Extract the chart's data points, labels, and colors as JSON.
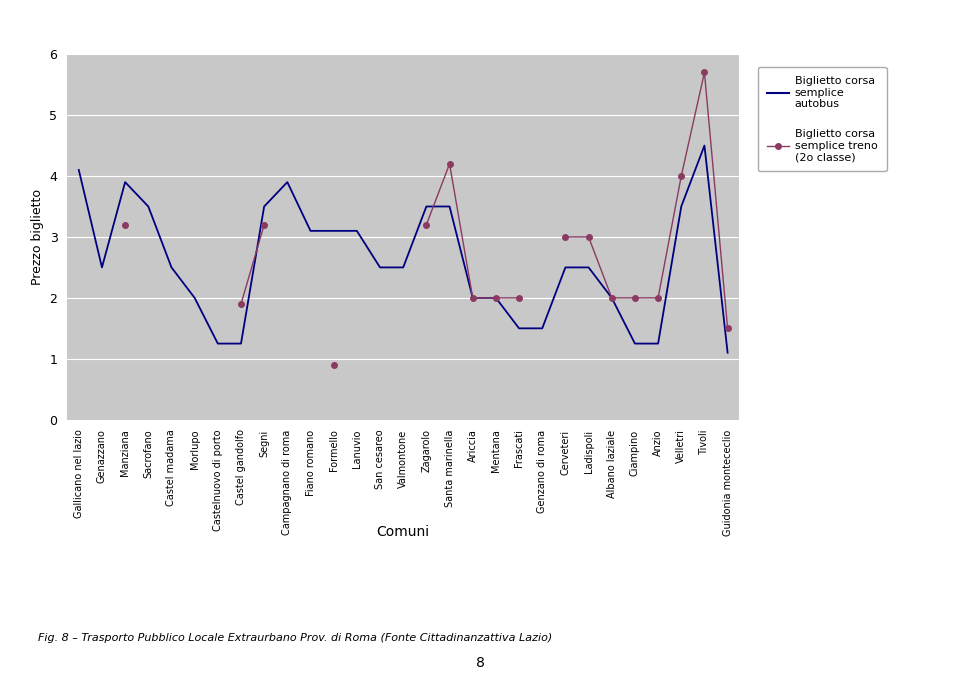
{
  "categories": [
    "Gallicano nel lazio",
    "Genazzano",
    "Manziana",
    "Sacrofano",
    "Castel madama",
    "Morlupo",
    "Castelnuovo di porto",
    "Castel gandolfo",
    "Segni",
    "Campagnano di roma",
    "Fiano romano",
    "Formello",
    "Lanuvio",
    "San cesareo",
    "Valmontone",
    "Zagarolo",
    "Santa marinella",
    "Ariccia",
    "Mentana",
    "Frascati",
    "Genzano di roma",
    "Cerveteri",
    "Ladispoli",
    "Albano laziale",
    "Ciampino",
    "Anzio",
    "Velletri",
    "Tivoli",
    "Guidonia montececlio"
  ],
  "bus_values": [
    4.1,
    2.5,
    3.9,
    3.5,
    2.5,
    2.0,
    1.25,
    1.25,
    3.5,
    3.9,
    3.1,
    3.1,
    3.1,
    2.5,
    2.5,
    3.5,
    3.5,
    2.0,
    2.0,
    1.5,
    1.5,
    2.5,
    2.5,
    2.0,
    1.25,
    1.25,
    3.5,
    4.5,
    1.1
  ],
  "train_values": [
    null,
    null,
    3.2,
    null,
    null,
    null,
    null,
    1.9,
    3.2,
    null,
    null,
    0.9,
    null,
    null,
    null,
    3.2,
    4.2,
    2.0,
    2.0,
    2.0,
    null,
    3.0,
    3.0,
    2.0,
    2.0,
    2.0,
    4.0,
    5.7,
    1.5
  ],
  "bus_color": "#000080",
  "train_color": "#8B3A62",
  "bg_color": "#C8C8C8",
  "ylabel": "Prezzo biglietto",
  "xlabel": "Comuni",
  "legend1": "Biglietto corsa\nsemplice\nautobus",
  "legend2": "Biglietto corsa\nsemplice treno\n(2o classe)",
  "ylim": [
    0,
    6
  ],
  "yticks": [
    0,
    1,
    2,
    3,
    4,
    5,
    6
  ],
  "caption": "Fig. 8 – Trasporto Pubblico Locale Extraurbano Prov. di Roma (Fonte Cittadinanzattiva Lazio)"
}
